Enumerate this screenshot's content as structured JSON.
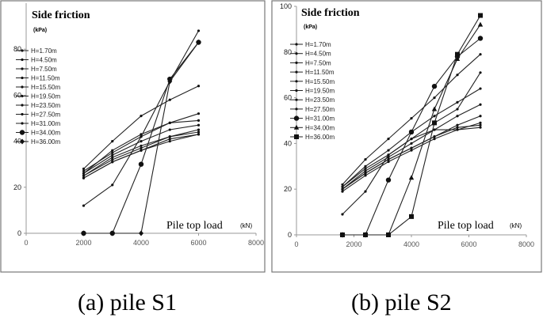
{
  "chart_data": [
    {
      "type": "line",
      "title": "Side friction",
      "ylabel": "(kPa)",
      "xlabel": "Pile top load",
      "xlabel_unit": "(kN)",
      "caption": "(a) pile S1",
      "xlim": [
        0,
        8000
      ],
      "ylim": [
        0,
        100
      ],
      "x_ticks": [
        "0",
        "2000",
        "4000",
        "6000",
        "8000"
      ],
      "y_ticks": [
        "0",
        "20",
        "40",
        "60",
        "80"
      ],
      "grid": false,
      "legend_position": "top-left",
      "x": [
        2000,
        3000,
        4000,
        5000,
        6000
      ],
      "series": [
        {
          "name": "H=1.70m",
          "marker": "dot",
          "values": [
            27,
            35,
            42,
            48,
            52
          ]
        },
        {
          "name": "H=4.50m",
          "marker": "dot",
          "values": [
            28,
            40,
            51,
            58,
            64
          ]
        },
        {
          "name": "H=7.50m",
          "marker": "dot",
          "values": [
            26,
            36,
            43,
            48,
            49
          ]
        },
        {
          "name": "H=11.50m",
          "marker": "dot",
          "values": [
            26,
            34,
            40,
            45,
            47
          ]
        },
        {
          "name": "H=15.50m",
          "marker": "dot",
          "values": [
            25,
            33,
            38,
            42,
            44
          ]
        },
        {
          "name": "H=19.50m",
          "marker": "dot",
          "values": [
            24,
            31,
            36,
            40,
            43
          ]
        },
        {
          "name": "H=23.50m",
          "marker": "dot",
          "values": [
            25,
            32,
            37,
            42,
            45
          ]
        },
        {
          "name": "H=27.50m",
          "marker": "dot",
          "values": [
            24,
            31,
            36,
            41,
            43
          ]
        },
        {
          "name": "H=31.00m",
          "marker": "dot",
          "values": [
            12,
            21,
            42,
            66,
            88
          ]
        },
        {
          "name": "H=34.00m",
          "marker": "circle",
          "values": [
            0,
            0,
            30,
            67,
            83
          ]
        },
        {
          "name": "H=36.00m",
          "marker": "diamond",
          "values": [
            0,
            0,
            0,
            66,
            83
          ]
        }
      ]
    },
    {
      "type": "line",
      "title": "Side friction",
      "ylabel": "(kPa)",
      "xlabel": "Pile top load",
      "xlabel_unit": "(kN)",
      "caption": "(b) pile S2",
      "xlim": [
        0,
        8000
      ],
      "ylim": [
        0,
        100
      ],
      "x_ticks": [
        "0",
        "2000",
        "4000",
        "6000",
        "8000"
      ],
      "y_ticks": [
        "0",
        "20",
        "40",
        "60",
        "80",
        "100"
      ],
      "grid": false,
      "legend_position": "top-left",
      "x": [
        1600,
        2400,
        3200,
        4000,
        4800,
        5600,
        6400
      ],
      "series": [
        {
          "name": "H=1.70m",
          "marker": "dot",
          "values": [
            22,
            33,
            42,
            51,
            60,
            70,
            79
          ]
        },
        {
          "name": "H=4.50m",
          "marker": "dot",
          "values": [
            21,
            30,
            37,
            45,
            52,
            58,
            64
          ]
        },
        {
          "name": "H=7.50m",
          "marker": "dot",
          "values": [
            21,
            29,
            35,
            42,
            49,
            55,
            71
          ]
        },
        {
          "name": "H=11.50m",
          "marker": "dot",
          "values": [
            20,
            28,
            34,
            40,
            46,
            52,
            57
          ]
        },
        {
          "name": "H=15.50m",
          "marker": "dot",
          "values": [
            20,
            27,
            33,
            38,
            43,
            48,
            52
          ]
        },
        {
          "name": "H=19.50m",
          "marker": "dot",
          "values": [
            19,
            26,
            32,
            37,
            42,
            46,
            49
          ]
        },
        {
          "name": "H=23.50m",
          "marker": "dot",
          "values": [
            20,
            27,
            33,
            38,
            43,
            47,
            48
          ]
        },
        {
          "name": "H=27.50m",
          "marker": "dot",
          "values": [
            9,
            19,
            35,
            42,
            46,
            46,
            47
          ]
        },
        {
          "name": "H=31.00m",
          "marker": "circle",
          "values": [
            0,
            0,
            24,
            45,
            65,
            78,
            86
          ]
        },
        {
          "name": "H=34.00m",
          "marker": "triangle",
          "values": [
            0,
            0,
            0,
            25,
            55,
            77,
            92
          ]
        },
        {
          "name": "H=36.00m",
          "marker": "square",
          "values": [
            0,
            0,
            0,
            8,
            49,
            79,
            96
          ]
        }
      ]
    }
  ]
}
